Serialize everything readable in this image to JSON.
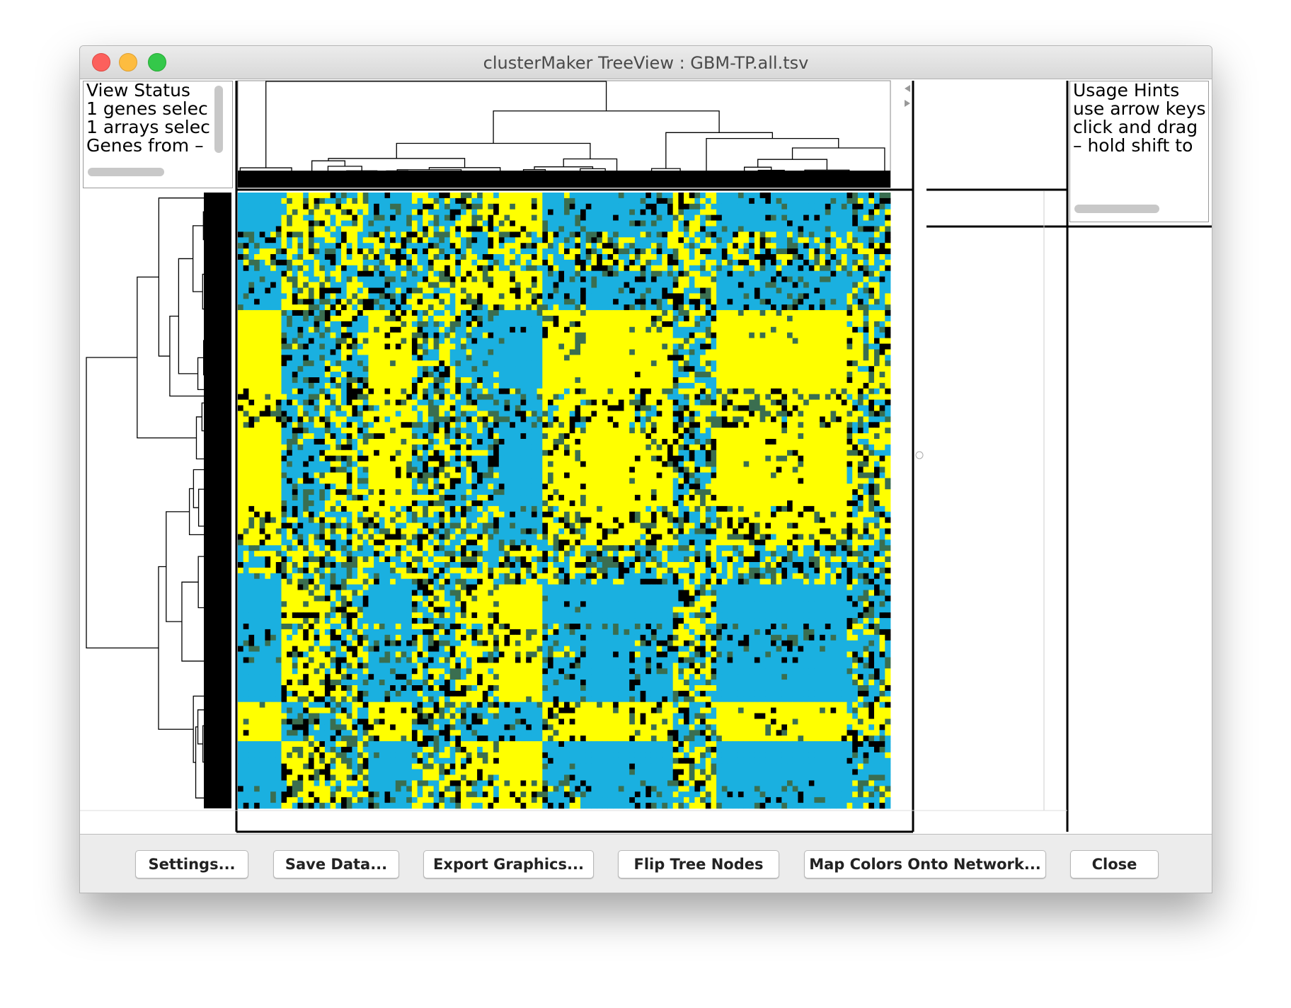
{
  "window": {
    "title": "clusterMaker TreeView : GBM-TP.all.tsv"
  },
  "view_status": {
    "lines": [
      "View Status",
      "1 genes selec",
      "1 arrays selec",
      "Genes from –"
    ]
  },
  "usage_hints": {
    "lines": [
      "Usage Hints",
      "use arrow keys",
      "click and drag",
      "– hold shift to"
    ]
  },
  "buttons": [
    "Settings...",
    "Save Data...",
    "Export Graphics...",
    "Flip Tree Nodes",
    "Map Colors Onto Network...",
    "Close"
  ]
}
